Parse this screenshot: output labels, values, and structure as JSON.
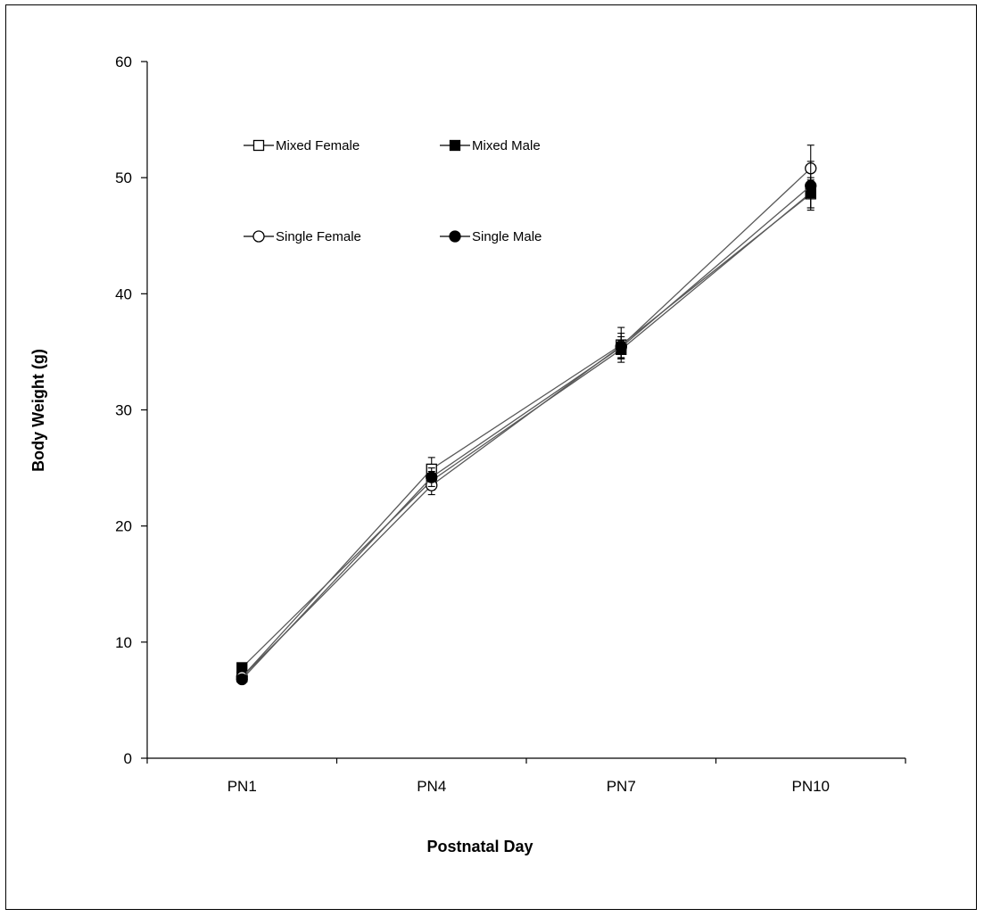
{
  "chart_data": {
    "type": "line",
    "title": "",
    "xlabel": "Postnatal Day",
    "ylabel": "Body Weight (g)",
    "categories": [
      "PN1",
      "PN4",
      "PN7",
      "PN10"
    ],
    "ylim": [
      0,
      60
    ],
    "yticks": [
      0,
      10,
      20,
      30,
      40,
      50,
      60
    ],
    "grid": false,
    "legend": "top-left, inside plot, 2 columns",
    "series": [
      {
        "name": "Mixed Female",
        "marker": "open-square",
        "values": [
          7.0,
          24.9,
          35.6,
          48.6
        ],
        "errors": [
          0.3,
          1.0,
          1.5,
          1.2
        ]
      },
      {
        "name": "Mixed Male",
        "marker": "filled-square",
        "values": [
          7.8,
          23.9,
          35.2,
          48.7
        ],
        "errors": [
          0.3,
          0.8,
          0.8,
          1.3
        ]
      },
      {
        "name": "Single Female",
        "marker": "open-circle",
        "values": [
          7.0,
          23.5,
          35.5,
          50.8
        ],
        "errors": [
          0.3,
          0.8,
          1.1,
          2.0
        ]
      },
      {
        "name": "Single Male",
        "marker": "filled-circle",
        "values": [
          6.8,
          24.2,
          35.4,
          49.3
        ],
        "errors": [
          0.3,
          0.8,
          0.9,
          2.1
        ]
      }
    ],
    "colors": {
      "line": "#595959",
      "marker_stroke": "#000000",
      "marker_open_fill": "#ffffff",
      "marker_filled_fill": "#000000"
    }
  }
}
